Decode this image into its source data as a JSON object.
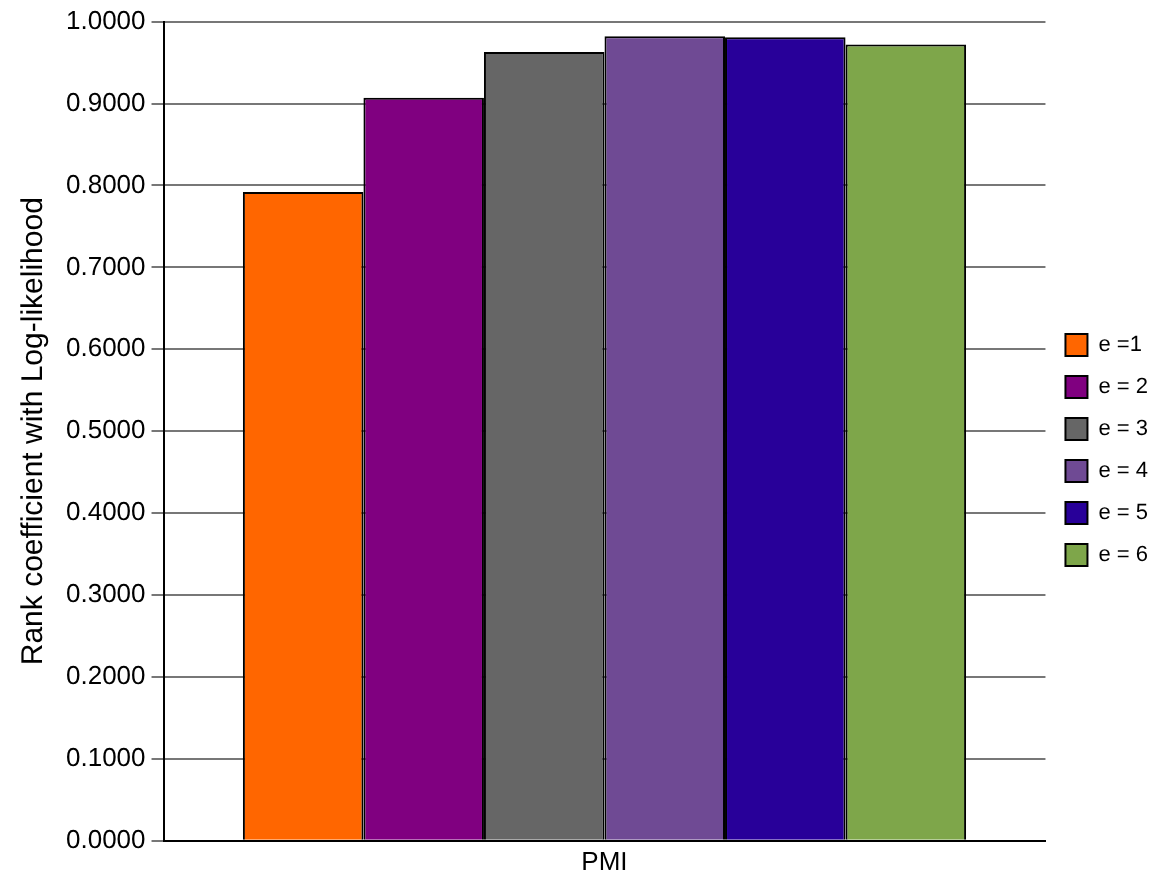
{
  "chart_data": {
    "type": "bar",
    "ylabel": "Rank coefficient with Log-likelihood",
    "categories": [
      "PMI"
    ],
    "series": [
      {
        "name": "e =1",
        "color": "#ff6600",
        "values": [
          0.792
        ]
      },
      {
        "name": "e = 2",
        "color": "#800080",
        "values": [
          0.907
        ]
      },
      {
        "name": "e = 3",
        "color": "#666666",
        "values": [
          0.963
        ]
      },
      {
        "name": "e = 4",
        "color": "#6f4a94",
        "values": [
          0.982
        ]
      },
      {
        "name": "e = 5",
        "color": "#280099",
        "values": [
          0.981
        ]
      },
      {
        "name": "e = 6",
        "color": "#7ea64a",
        "values": [
          0.972
        ]
      }
    ],
    "ylim": [
      0,
      1
    ],
    "yticks": [
      {
        "value": 0,
        "label": "0.0000"
      },
      {
        "value": 0.1,
        "label": "0.1000"
      },
      {
        "value": 0.2,
        "label": "0.2000"
      },
      {
        "value": 0.3,
        "label": "0.3000"
      },
      {
        "value": 0.4,
        "label": "0.4000"
      },
      {
        "value": 0.5,
        "label": "0.5000"
      },
      {
        "value": 0.6,
        "label": "0.6000"
      },
      {
        "value": 0.7,
        "label": "0.7000"
      },
      {
        "value": 0.8,
        "label": "0.8000"
      },
      {
        "value": 0.9,
        "label": "0.9000"
      },
      {
        "value": 1,
        "label": "1.0000"
      }
    ],
    "grid": "y",
    "legend": "right"
  }
}
